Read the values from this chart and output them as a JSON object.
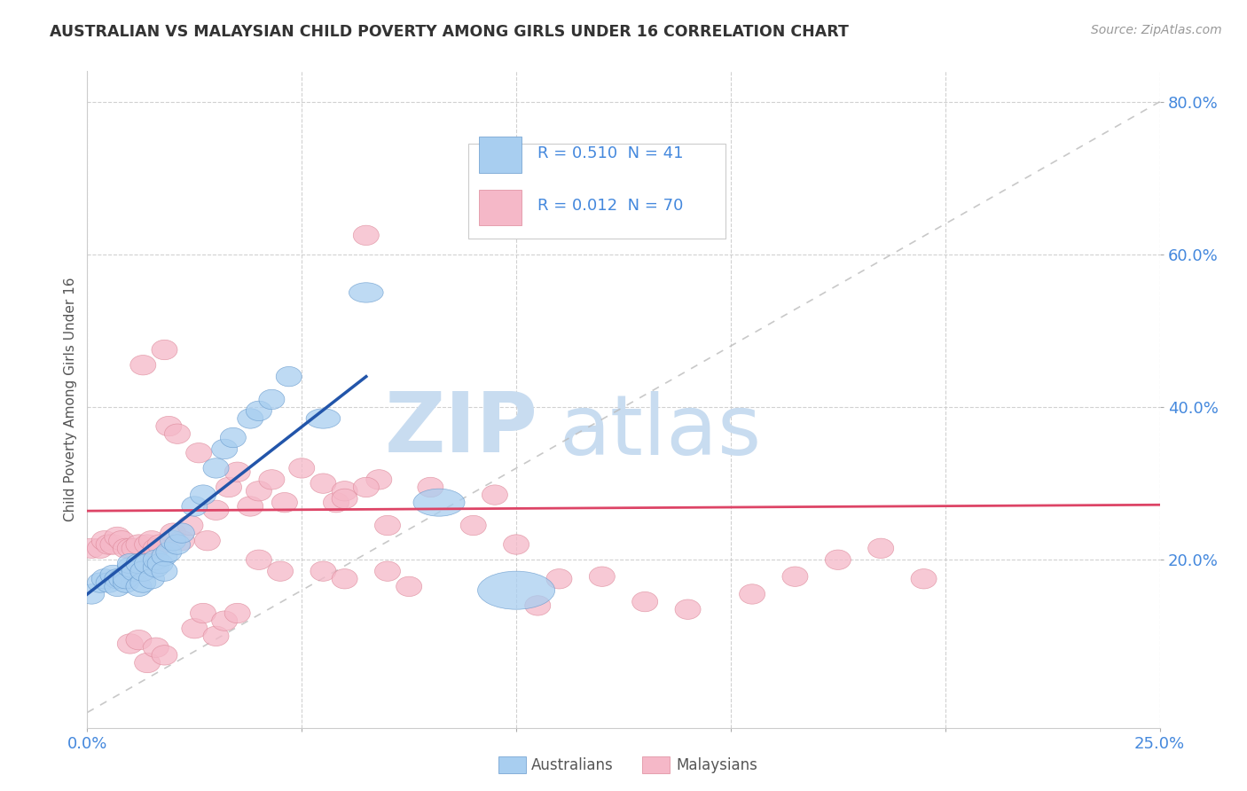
{
  "title": "AUSTRALIAN VS MALAYSIAN CHILD POVERTY AMONG GIRLS UNDER 16 CORRELATION CHART",
  "source": "Source: ZipAtlas.com",
  "ylabel": "Child Poverty Among Girls Under 16",
  "xlim": [
    0.0,
    0.25
  ],
  "ylim": [
    -0.02,
    0.84
  ],
  "xtick_vals": [
    0.0,
    0.05,
    0.1,
    0.15,
    0.2,
    0.25
  ],
  "xticklabels": [
    "0.0%",
    "",
    "",
    "",
    "",
    "25.0%"
  ],
  "ytick_vals": [
    0.2,
    0.4,
    0.6,
    0.8
  ],
  "yticklabels": [
    "20.0%",
    "40.0%",
    "60.0%",
    "80.0%"
  ],
  "legend_R_aus": "0.510",
  "legend_N_aus": "41",
  "legend_R_mal": "0.012",
  "legend_N_mal": "70",
  "aus_color": "#A8CEF0",
  "mal_color": "#F5B8C8",
  "aus_edge_color": "#6699CC",
  "mal_edge_color": "#DD8899",
  "aus_line_color": "#2255AA",
  "mal_line_color": "#DD4466",
  "ref_line_color": "#BBBBBB",
  "tick_color": "#4488DD",
  "watermark_zip_color": "#C8DCF0",
  "watermark_atlas_color": "#C8DCF0",
  "aus_line_x0": 0.0,
  "aus_line_y0": 0.155,
  "aus_line_x1": 0.065,
  "aus_line_y1": 0.44,
  "mal_line_x0": 0.0,
  "mal_line_y0": 0.264,
  "mal_line_x1": 0.25,
  "mal_line_y1": 0.272,
  "aus_x": [
    0.001,
    0.003,
    0.004,
    0.005,
    0.006,
    0.007,
    0.007,
    0.008,
    0.009,
    0.009,
    0.01,
    0.01,
    0.011,
    0.012,
    0.012,
    0.013,
    0.013,
    0.014,
    0.015,
    0.016,
    0.016,
    0.017,
    0.018,
    0.018,
    0.019,
    0.02,
    0.021,
    0.022,
    0.025,
    0.027,
    0.03,
    0.032,
    0.034,
    0.038,
    0.04,
    0.043,
    0.047,
    0.055,
    0.065,
    0.082,
    0.1
  ],
  "aus_y": [
    0.155,
    0.17,
    0.175,
    0.17,
    0.18,
    0.175,
    0.165,
    0.175,
    0.17,
    0.175,
    0.19,
    0.195,
    0.185,
    0.165,
    0.195,
    0.17,
    0.185,
    0.195,
    0.175,
    0.19,
    0.2,
    0.195,
    0.205,
    0.185,
    0.21,
    0.225,
    0.22,
    0.235,
    0.27,
    0.285,
    0.32,
    0.345,
    0.36,
    0.385,
    0.395,
    0.41,
    0.44,
    0.385,
    0.55,
    0.275,
    0.16
  ],
  "aus_rx": [
    0.003,
    0.003,
    0.003,
    0.003,
    0.003,
    0.003,
    0.003,
    0.003,
    0.003,
    0.003,
    0.003,
    0.003,
    0.003,
    0.003,
    0.003,
    0.003,
    0.003,
    0.003,
    0.003,
    0.003,
    0.003,
    0.003,
    0.003,
    0.003,
    0.003,
    0.003,
    0.003,
    0.003,
    0.003,
    0.003,
    0.003,
    0.003,
    0.003,
    0.003,
    0.003,
    0.003,
    0.003,
    0.004,
    0.004,
    0.006,
    0.009
  ],
  "aus_ry": [
    0.013,
    0.013,
    0.013,
    0.013,
    0.013,
    0.013,
    0.013,
    0.013,
    0.013,
    0.013,
    0.013,
    0.013,
    0.013,
    0.013,
    0.013,
    0.013,
    0.013,
    0.013,
    0.013,
    0.013,
    0.013,
    0.013,
    0.013,
    0.013,
    0.013,
    0.013,
    0.013,
    0.013,
    0.013,
    0.013,
    0.013,
    0.013,
    0.013,
    0.013,
    0.013,
    0.013,
    0.013,
    0.013,
    0.013,
    0.018,
    0.025
  ],
  "mal_x": [
    0.001,
    0.003,
    0.004,
    0.005,
    0.006,
    0.007,
    0.008,
    0.009,
    0.01,
    0.011,
    0.012,
    0.013,
    0.014,
    0.015,
    0.016,
    0.017,
    0.018,
    0.019,
    0.02,
    0.021,
    0.022,
    0.024,
    0.026,
    0.028,
    0.03,
    0.033,
    0.035,
    0.038,
    0.04,
    0.043,
    0.046,
    0.05,
    0.055,
    0.058,
    0.06,
    0.065,
    0.068,
    0.07,
    0.08,
    0.09,
    0.1,
    0.11,
    0.12,
    0.13,
    0.14,
    0.155,
    0.165,
    0.175,
    0.185,
    0.195,
    0.055,
    0.06,
    0.07,
    0.075,
    0.095,
    0.105,
    0.06,
    0.065,
    0.04,
    0.045,
    0.025,
    0.027,
    0.03,
    0.032,
    0.035,
    0.01,
    0.012,
    0.014,
    0.016,
    0.018
  ],
  "mal_y": [
    0.215,
    0.215,
    0.225,
    0.22,
    0.22,
    0.23,
    0.225,
    0.215,
    0.215,
    0.215,
    0.22,
    0.455,
    0.22,
    0.225,
    0.215,
    0.22,
    0.475,
    0.375,
    0.235,
    0.365,
    0.225,
    0.245,
    0.34,
    0.225,
    0.265,
    0.295,
    0.315,
    0.27,
    0.29,
    0.305,
    0.275,
    0.32,
    0.3,
    0.275,
    0.29,
    0.625,
    0.305,
    0.245,
    0.295,
    0.245,
    0.22,
    0.175,
    0.178,
    0.145,
    0.135,
    0.155,
    0.178,
    0.2,
    0.215,
    0.175,
    0.185,
    0.175,
    0.185,
    0.165,
    0.285,
    0.14,
    0.28,
    0.295,
    0.2,
    0.185,
    0.11,
    0.13,
    0.1,
    0.12,
    0.13,
    0.09,
    0.095,
    0.065,
    0.085,
    0.075
  ],
  "mal_rx": [
    0.003,
    0.003,
    0.003,
    0.003,
    0.003,
    0.003,
    0.003,
    0.003,
    0.003,
    0.003,
    0.003,
    0.003,
    0.003,
    0.003,
    0.003,
    0.003,
    0.003,
    0.003,
    0.003,
    0.003,
    0.003,
    0.003,
    0.003,
    0.003,
    0.003,
    0.003,
    0.003,
    0.003,
    0.003,
    0.003,
    0.003,
    0.003,
    0.003,
    0.003,
    0.003,
    0.003,
    0.003,
    0.003,
    0.003,
    0.003,
    0.003,
    0.003,
    0.003,
    0.003,
    0.003,
    0.003,
    0.003,
    0.003,
    0.003,
    0.003,
    0.003,
    0.003,
    0.003,
    0.003,
    0.003,
    0.003,
    0.003,
    0.003,
    0.003,
    0.003,
    0.003,
    0.003,
    0.003,
    0.003,
    0.003,
    0.003,
    0.003,
    0.003,
    0.003,
    0.003
  ],
  "mal_ry": [
    0.013,
    0.013,
    0.013,
    0.013,
    0.013,
    0.013,
    0.013,
    0.013,
    0.013,
    0.013,
    0.013,
    0.013,
    0.013,
    0.013,
    0.013,
    0.013,
    0.013,
    0.013,
    0.013,
    0.013,
    0.013,
    0.013,
    0.013,
    0.013,
    0.013,
    0.013,
    0.013,
    0.013,
    0.013,
    0.013,
    0.013,
    0.013,
    0.013,
    0.013,
    0.013,
    0.013,
    0.013,
    0.013,
    0.013,
    0.013,
    0.013,
    0.013,
    0.013,
    0.013,
    0.013,
    0.013,
    0.013,
    0.013,
    0.013,
    0.013,
    0.013,
    0.013,
    0.013,
    0.013,
    0.013,
    0.013,
    0.013,
    0.013,
    0.013,
    0.013,
    0.013,
    0.013,
    0.013,
    0.013,
    0.013,
    0.013,
    0.013,
    0.013,
    0.013,
    0.013
  ]
}
